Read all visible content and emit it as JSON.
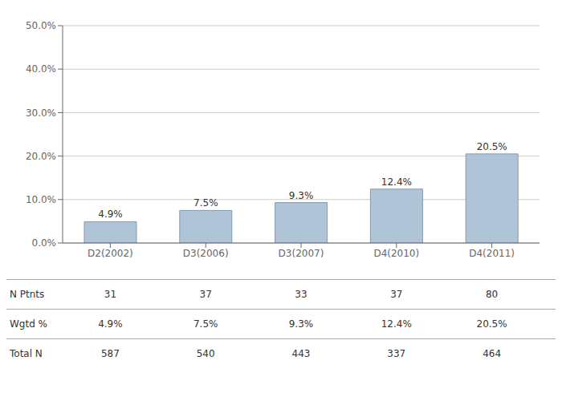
{
  "chart_data": {
    "type": "bar",
    "categories": [
      "D2(2002)",
      "D3(2006)",
      "D3(2007)",
      "D4(2010)",
      "D4(2011)"
    ],
    "values": [
      4.9,
      7.5,
      9.3,
      12.4,
      20.5
    ],
    "value_labels": [
      "4.9%",
      "7.5%",
      "9.3%",
      "12.4%",
      "20.5%"
    ],
    "data_labels": true,
    "color": "#b0c4d8",
    "ylim": [
      0,
      50
    ],
    "yticks": [
      {
        "value": 0,
        "label": "0.0%"
      },
      {
        "value": 10,
        "label": "10.0%"
      },
      {
        "value": 20,
        "label": "20.0%"
      },
      {
        "value": 30,
        "label": "30.0%"
      },
      {
        "value": 40,
        "label": "40.0%"
      },
      {
        "value": 50,
        "label": "50.0%"
      }
    ],
    "grid": true,
    "table": [
      {
        "name": "N Ptnts",
        "values": [
          31,
          37,
          33,
          37,
          80
        ]
      },
      {
        "name": "Wgtd %",
        "values": [
          4.9,
          7.5,
          9.3,
          12.4,
          20.5
        ],
        "value_labels": [
          "4.9%",
          "7.5%",
          "9.3%",
          "12.4%",
          "20.5%"
        ]
      },
      {
        "name": "Total N",
        "values": [
          587,
          540,
          443,
          337,
          464
        ]
      }
    ]
  }
}
